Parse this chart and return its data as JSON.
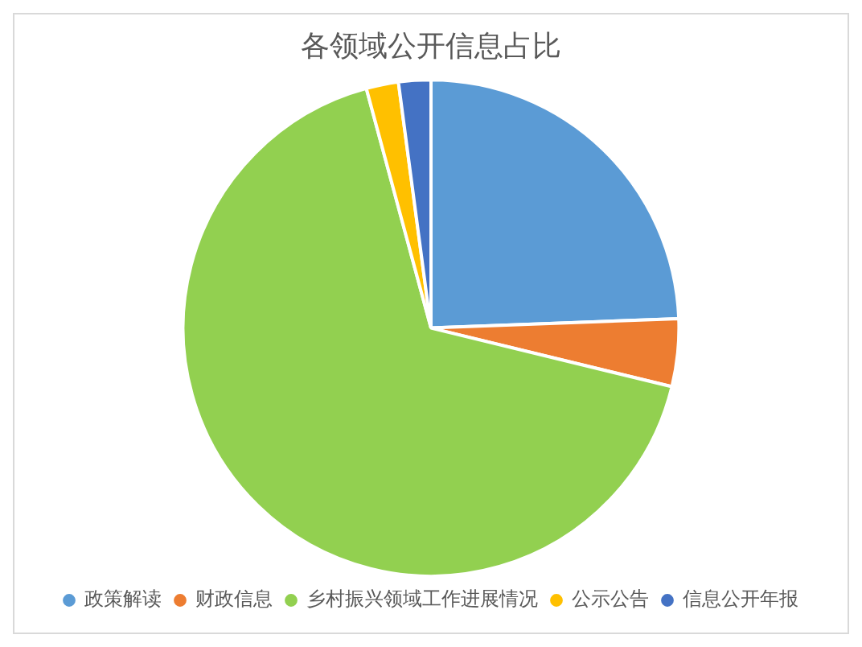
{
  "chart_data": {
    "type": "pie",
    "title": "各领域公开信息占比",
    "categories": [
      "政策解读",
      "财政信息",
      "乡村振兴领域工作进展情况",
      "公示公告",
      "信息公开年报"
    ],
    "values": [
      24.4,
      4.4,
      67,
      2.1,
      2.1
    ],
    "colors": [
      "#5b9bd5",
      "#ed7d31",
      "#92d050",
      "#ffc000",
      "#4472c4"
    ],
    "legend": "bottom"
  }
}
